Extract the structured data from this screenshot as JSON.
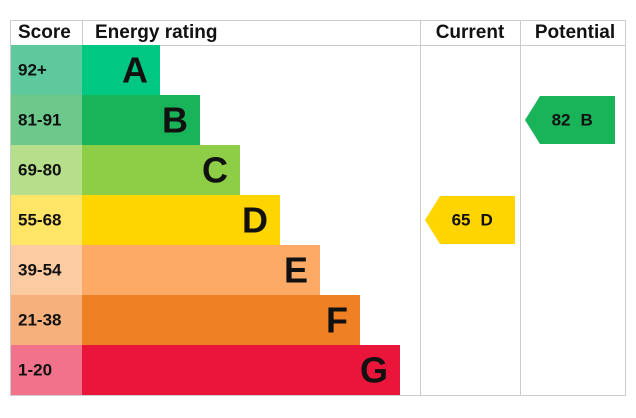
{
  "header": {
    "score": "Score",
    "rating": "Energy rating",
    "current": "Current",
    "potential": "Potential"
  },
  "rows": [
    {
      "score": "92+",
      "band": "A",
      "color": "#00c781",
      "score_color": "#5dc99c"
    },
    {
      "score": "81-91",
      "band": "B",
      "color": "#19b459",
      "score_color": "#6dc88c"
    },
    {
      "score": "69-80",
      "band": "C",
      "color": "#8dce46",
      "score_color": "#b5df8b"
    },
    {
      "score": "55-68",
      "band": "D",
      "color": "#ffd500",
      "score_color": "#ffe566"
    },
    {
      "score": "39-54",
      "band": "E",
      "color": "#fcaa65",
      "score_color": "#fdcba2"
    },
    {
      "score": "21-38",
      "band": "F",
      "color": "#ef8023",
      "score_color": "#f5b07b"
    },
    {
      "score": "1-20",
      "band": "G",
      "color": "#e9153b",
      "score_color": "#f1728a"
    }
  ],
  "current": {
    "value": 65,
    "band": "D"
  },
  "potential": {
    "value": 82,
    "band": "B"
  }
}
